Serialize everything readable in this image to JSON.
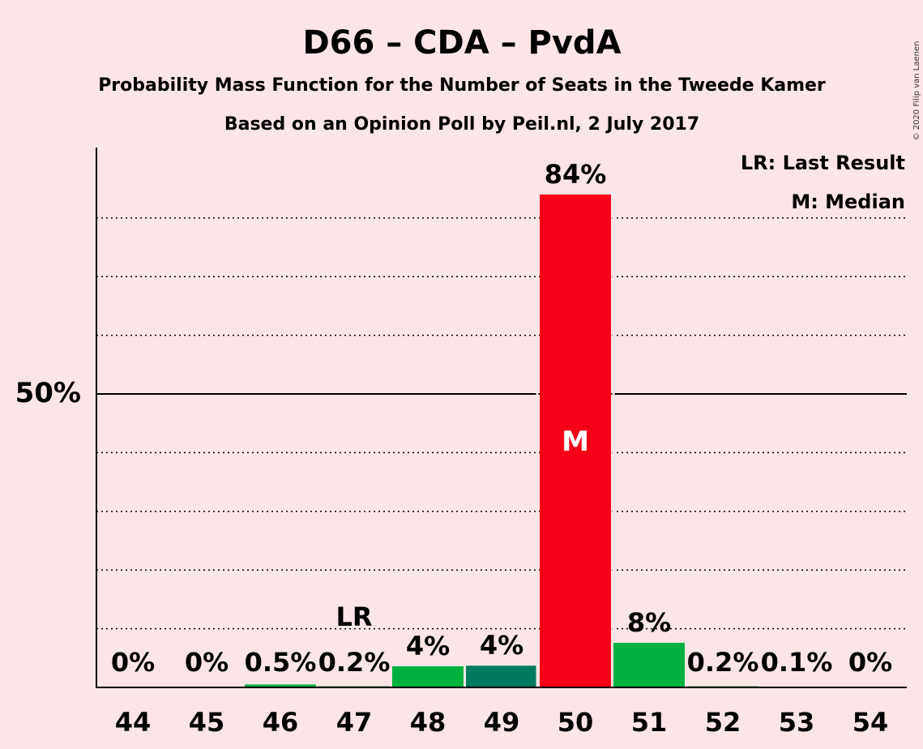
{
  "chart_data": {
    "type": "bar",
    "title": "D66 – CDA – PvdA",
    "subtitle1": "Probability Mass Function for the Number of Seats in the Tweede Kamer",
    "subtitle2": "Based on an Opinion Poll by Peil.nl, 2 July 2017",
    "legend": {
      "lr": "LR: Last Result",
      "m": "M: Median",
      "placement": "top-right"
    },
    "copyright": "© 2020 Filip van Laenen",
    "ytick_label": "50%",
    "ylim": [
      0,
      92
    ],
    "yticks_dotted": [
      10,
      20,
      30,
      40,
      60,
      70,
      80
    ],
    "yticks_solid": [
      50
    ],
    "categories": [
      "44",
      "45",
      "46",
      "47",
      "48",
      "49",
      "50",
      "51",
      "52",
      "53",
      "54"
    ],
    "values": [
      0,
      0,
      0.5,
      0.2,
      3.6,
      3.7,
      84,
      7.6,
      0.2,
      0.1,
      0
    ],
    "labels": [
      "0%",
      "0%",
      "0.5%",
      "0.2%",
      "4%",
      "4%",
      "84%",
      "8%",
      "0.2%",
      "0.1%",
      "0%"
    ],
    "colors": [
      "#00B140",
      "#00B140",
      "#00B140",
      "#00B140",
      "#00B140",
      "#007A5E",
      "#F70019",
      "#00B140",
      "#00B140",
      "#00B140",
      "#00B140"
    ],
    "last_result_category": "47",
    "last_result_label": "LR",
    "median_category": "50",
    "median_label": "M"
  }
}
